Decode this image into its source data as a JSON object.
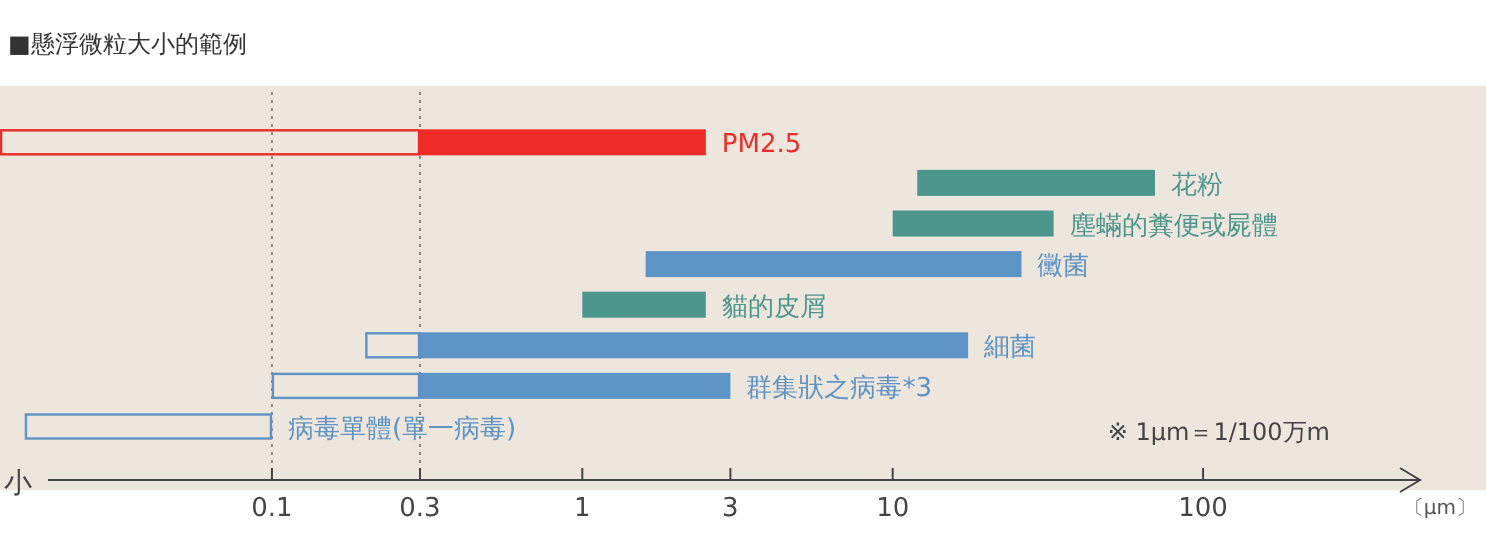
{
  "chart_data": {
    "type": "bar",
    "orientation": "horizontal",
    "title": "■懸浮微粒大小的範例",
    "xlabel": "〔μm〕",
    "categories": [
      "PM2.5",
      "花粉",
      "塵蟎的糞便或屍體",
      "黴菌",
      "貓的皮屑",
      "細菌",
      "群集狀之病毒*3",
      "病毒單體(單一病毒)"
    ],
    "series": [
      {
        "base": [
          0.0133,
          null,
          null,
          null,
          null,
          0.2,
          0.1,
          0.016
        ],
        "values": [
          0.2867,
          null,
          null,
          null,
          null,
          0.1,
          0.2,
          0.084
        ],
        "colors": [
          "#ee2b27",
          null,
          null,
          null,
          null,
          "#5e93c5",
          "#5e93c5",
          "#5e93c5"
        ]
      },
      {
        "base": [
          0.3,
          12,
          10,
          1.6,
          1,
          0.3,
          0.3,
          null
        ],
        "values": [
          2.2,
          58,
          23,
          24.4,
          1.5,
          17.2,
          2.7,
          null
        ],
        "colors": [
          "#ee2b27",
          "#4d968e",
          "#4d968e",
          "#5e93c5",
          "#4d968e",
          "#5e93c5",
          "#5e93c5",
          null
        ]
      }
    ],
    "log": "x",
    "xlim": [
      0.0133,
      500
    ],
    "xticks": [
      0.1,
      0.3,
      1,
      3,
      10,
      100
    ],
    "ref_lines": [
      {
        "axis": "x",
        "value": 0.1,
        "color": "#888888",
        "line_style": "dotted"
      },
      {
        "axis": "x",
        "value": 0.3,
        "color": "#888888",
        "line_style": "dotted"
      }
    ],
    "annotations": [
      "小",
      "※ 1μm＝1/100万m"
    ],
    "grid": false
  }
}
